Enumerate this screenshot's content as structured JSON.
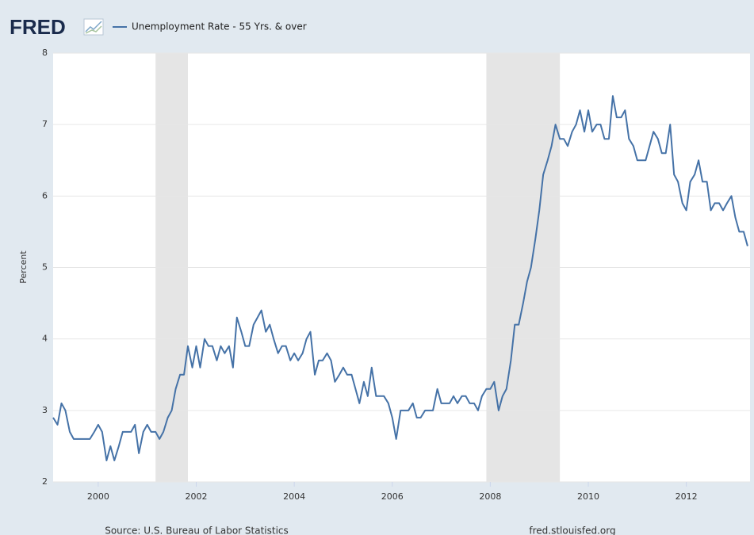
{
  "chart_data": {
    "type": "line",
    "logo": "FRED",
    "ylabel": "Percent",
    "source": "Source: U.S. Bureau of Labor Statistics",
    "site": "fred.stlouisfed.org",
    "x": [
      1999.08,
      1999.17,
      1999.25,
      1999.33,
      1999.42,
      1999.5,
      1999.58,
      1999.67,
      1999.75,
      1999.83,
      1999.92,
      2000,
      2000.08,
      2000.17,
      2000.25,
      2000.33,
      2000.42,
      2000.5,
      2000.58,
      2000.67,
      2000.75,
      2000.83,
      2000.92,
      2001,
      2001.08,
      2001.17,
      2001.25,
      2001.33,
      2001.42,
      2001.5,
      2001.58,
      2001.67,
      2001.75,
      2001.83,
      2001.92,
      2002,
      2002.08,
      2002.17,
      2002.25,
      2002.33,
      2002.42,
      2002.5,
      2002.58,
      2002.67,
      2002.75,
      2002.83,
      2002.92,
      2003,
      2003.08,
      2003.17,
      2003.25,
      2003.33,
      2003.42,
      2003.5,
      2003.58,
      2003.67,
      2003.75,
      2003.83,
      2003.92,
      2004,
      2004.08,
      2004.17,
      2004.25,
      2004.33,
      2004.42,
      2004.5,
      2004.58,
      2004.67,
      2004.75,
      2004.83,
      2004.92,
      2005,
      2005.08,
      2005.17,
      2005.25,
      2005.33,
      2005.42,
      2005.5,
      2005.58,
      2005.67,
      2005.75,
      2005.83,
      2005.92,
      2006,
      2006.08,
      2006.17,
      2006.25,
      2006.33,
      2006.42,
      2006.5,
      2006.58,
      2006.67,
      2006.75,
      2006.83,
      2006.92,
      2007,
      2007.08,
      2007.17,
      2007.25,
      2007.33,
      2007.42,
      2007.5,
      2007.58,
      2007.67,
      2007.75,
      2007.83,
      2007.92,
      2008,
      2008.08,
      2008.17,
      2008.25,
      2008.33,
      2008.42,
      2008.5,
      2008.58,
      2008.67,
      2008.75,
      2008.83,
      2008.92,
      2009,
      2009.08,
      2009.17,
      2009.25,
      2009.33,
      2009.42,
      2009.5,
      2009.58,
      2009.67,
      2009.75,
      2009.83,
      2009.92,
      2010,
      2010.08,
      2010.17,
      2010.25,
      2010.33,
      2010.42,
      2010.5,
      2010.58,
      2010.67,
      2010.75,
      2010.83,
      2010.92,
      2011,
      2011.08,
      2011.17,
      2011.25,
      2011.33,
      2011.42,
      2011.5,
      2011.58,
      2011.67,
      2011.75,
      2011.83,
      2011.92,
      2012,
      2012.08,
      2012.17,
      2012.25,
      2012.33,
      2012.42,
      2012.5,
      2012.58,
      2012.67,
      2012.75,
      2012.83,
      2012.92,
      2013,
      2013.08,
      2013.17,
      2013.25
    ],
    "series": [
      {
        "name": "Unemployment Rate - 55 Yrs. & over",
        "color": "#4572a7",
        "values": [
          2.9,
          2.8,
          3.1,
          3.0,
          2.7,
          2.6,
          2.6,
          2.6,
          2.6,
          2.6,
          2.7,
          2.8,
          2.7,
          2.3,
          2.5,
          2.3,
          2.5,
          2.7,
          2.7,
          2.7,
          2.8,
          2.4,
          2.7,
          2.8,
          2.7,
          2.7,
          2.6,
          2.7,
          2.9,
          3.0,
          3.3,
          3.5,
          3.5,
          3.9,
          3.6,
          3.9,
          3.6,
          4.0,
          3.9,
          3.9,
          3.7,
          3.9,
          3.8,
          3.9,
          3.6,
          4.3,
          4.1,
          3.9,
          3.9,
          4.2,
          4.3,
          4.4,
          4.1,
          4.2,
          4.0,
          3.8,
          3.9,
          3.9,
          3.7,
          3.8,
          3.7,
          3.8,
          4.0,
          4.1,
          3.5,
          3.7,
          3.7,
          3.8,
          3.7,
          3.4,
          3.5,
          3.6,
          3.5,
          3.5,
          3.3,
          3.1,
          3.4,
          3.2,
          3.6,
          3.2,
          3.2,
          3.2,
          3.1,
          2.9,
          2.6,
          3.0,
          3.0,
          3.0,
          3.1,
          2.9,
          2.9,
          3.0,
          3.0,
          3.0,
          3.3,
          3.1,
          3.1,
          3.1,
          3.2,
          3.1,
          3.2,
          3.2,
          3.1,
          3.1,
          3.0,
          3.2,
          3.3,
          3.3,
          3.4,
          3.0,
          3.2,
          3.3,
          3.7,
          4.2,
          4.2,
          4.5,
          4.8,
          5.0,
          5.4,
          5.8,
          6.3,
          6.5,
          6.7,
          7.0,
          6.8,
          6.8,
          6.7,
          6.9,
          7.0,
          7.2,
          6.9,
          7.2,
          6.9,
          7.0,
          7.0,
          6.8,
          6.8,
          7.4,
          7.1,
          7.1,
          7.2,
          6.8,
          6.7,
          6.5,
          6.5,
          6.5,
          6.7,
          6.9,
          6.8,
          6.6,
          6.6,
          7.0,
          6.3,
          6.2,
          5.9,
          5.8,
          6.2,
          6.3,
          6.5,
          6.2,
          6.2,
          5.8,
          5.9,
          5.9,
          5.8,
          5.9,
          6.0,
          5.7,
          5.5,
          5.5,
          5.3
        ]
      }
    ],
    "recessions": [
      [
        2001.17,
        2001.83
      ],
      [
        2007.92,
        2009.42
      ]
    ],
    "xlim": [
      1999.08,
      2013.3
    ],
    "xticks": [
      2000,
      2002,
      2004,
      2006,
      2008,
      2010,
      2012
    ],
    "ylim": [
      2,
      8
    ],
    "yticks": [
      2,
      3,
      4,
      5,
      6,
      7,
      8
    ],
    "grid": true
  }
}
